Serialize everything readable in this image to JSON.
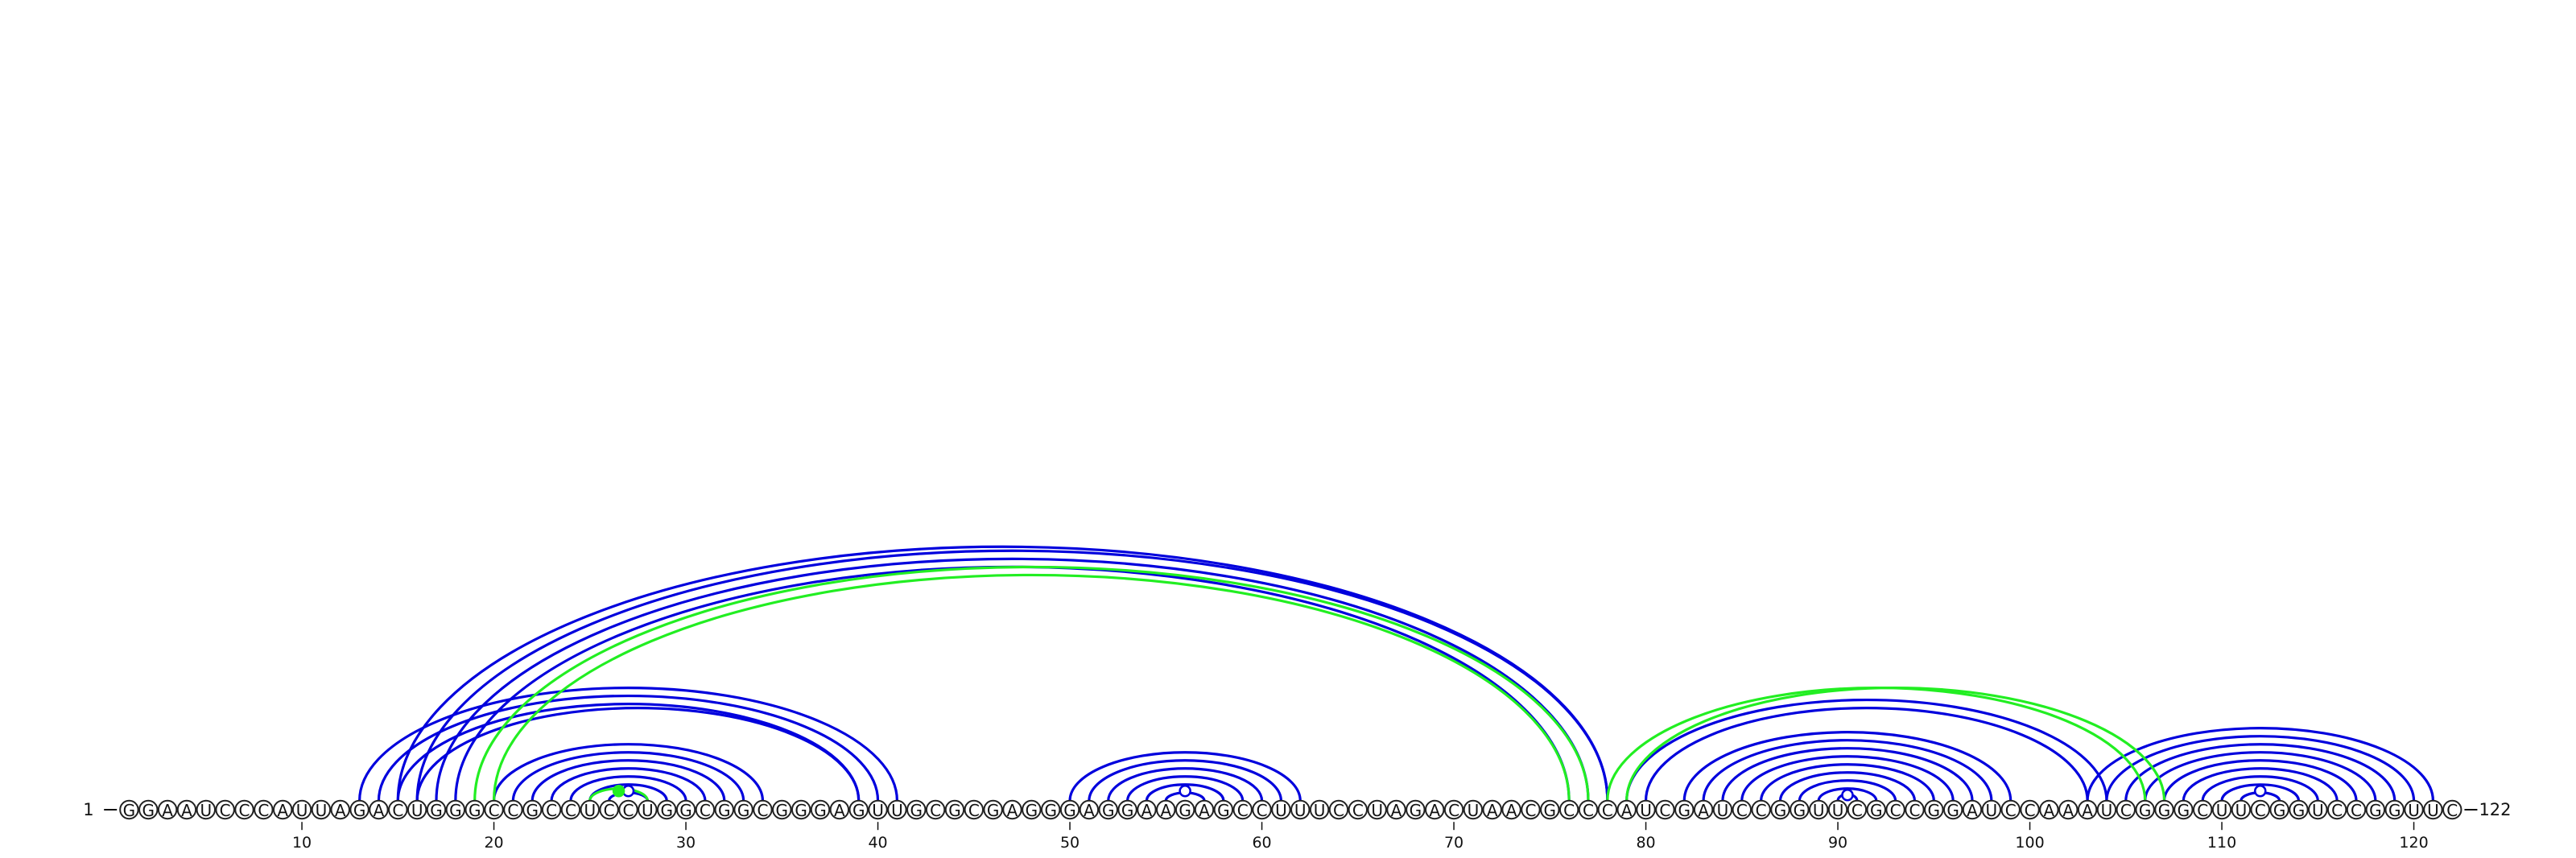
{
  "diagram": {
    "sequence": "GGAAUCCCAUUAGACUGGGCCGCCUCCUGGCGGCGGGAGUUGCGCGAGGGAGGAAGAGCCUUUCCUAGACUAACGCCCAUCGAUCCGGUUCGCCGGAUCCAAAUCGGGCUUCGGUCCGGUUC",
    "start_label": "1",
    "end_label": "122",
    "ticks": [
      10,
      20,
      30,
      40,
      50,
      60,
      70,
      80,
      90,
      100,
      110,
      120
    ],
    "colors": {
      "blue": "#0000dd",
      "green": "#22ee22"
    },
    "blue_pairs": [
      [
        13,
        41
      ],
      [
        14,
        40
      ],
      [
        15,
        39
      ],
      [
        16,
        39
      ],
      [
        15,
        78
      ],
      [
        16,
        78
      ],
      [
        17,
        77
      ],
      [
        18,
        76
      ],
      [
        20,
        34
      ],
      [
        21,
        33
      ],
      [
        22,
        32
      ],
      [
        23,
        31
      ],
      [
        24,
        30
      ],
      [
        25,
        29
      ],
      [
        26,
        28
      ],
      [
        50,
        62
      ],
      [
        51,
        61
      ],
      [
        52,
        60
      ],
      [
        53,
        59
      ],
      [
        54,
        58
      ],
      [
        55,
        57
      ],
      [
        82,
        99
      ],
      [
        83,
        98
      ],
      [
        84,
        97
      ],
      [
        85,
        96
      ],
      [
        86,
        95
      ],
      [
        87,
        94
      ],
      [
        88,
        93
      ],
      [
        89,
        92
      ],
      [
        90,
        91
      ],
      [
        79,
        104
      ],
      [
        80,
        103
      ],
      [
        103,
        121
      ],
      [
        104,
        120
      ],
      [
        105,
        119
      ],
      [
        106,
        118
      ],
      [
        107,
        117
      ],
      [
        108,
        116
      ],
      [
        109,
        115
      ],
      [
        110,
        114
      ],
      [
        111,
        113
      ]
    ],
    "green_pairs": [
      [
        19,
        77
      ],
      [
        20,
        76
      ],
      [
        25,
        28
      ],
      [
        78,
        106
      ],
      [
        79,
        107
      ]
    ],
    "hairpin_markers": [
      {
        "at": 27,
        "color": "blue"
      },
      {
        "at": 56,
        "color": "blue"
      },
      {
        "at": 90.5,
        "color": "blue"
      },
      {
        "at": 112,
        "color": "blue"
      },
      {
        "at": 26.5,
        "color": "green"
      }
    ]
  }
}
